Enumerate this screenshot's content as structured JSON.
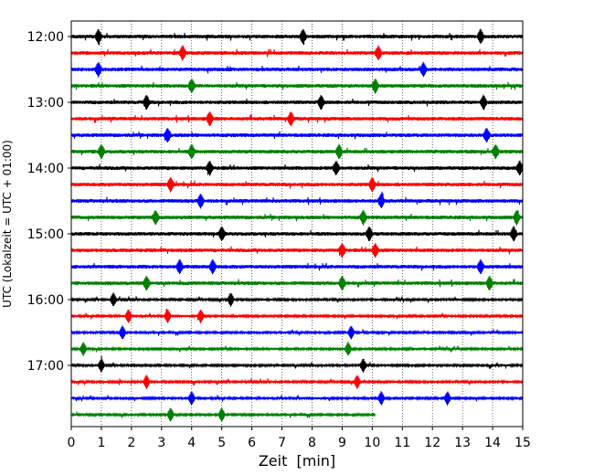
{
  "chart_data": {
    "type": "line",
    "title": "",
    "xlabel": "Zeit  [min]",
    "ylabel": "UTC (Lokalzeit = UTC + 01:00)",
    "xlim": [
      0,
      15
    ],
    "x_ticks": [
      "0",
      "1",
      "2",
      "3",
      "4",
      "5",
      "6",
      "7",
      "8",
      "9",
      "10",
      "11",
      "12",
      "13",
      "14",
      "15"
    ],
    "y_ticks": [
      "12:00",
      "13:00",
      "14:00",
      "15:00",
      "16:00",
      "17:00"
    ],
    "grid": "vertical-dotted",
    "trace_interval_min": 15,
    "series_colors": [
      "#000000",
      "#ff0000",
      "#0000ff",
      "#008000"
    ],
    "traces": [
      {
        "start": "12:00",
        "end_min": 15,
        "events": [
          0.9,
          7.7,
          13.6
        ],
        "color": "#000000"
      },
      {
        "start": "12:15",
        "end_min": 15,
        "events": [
          3.7,
          10.2
        ],
        "color": "#ff0000"
      },
      {
        "start": "12:30",
        "end_min": 15,
        "events": [
          0.9,
          11.7
        ],
        "color": "#0000ff"
      },
      {
        "start": "12:45",
        "end_min": 15,
        "events": [
          4.0,
          10.1
        ],
        "color": "#008000"
      },
      {
        "start": "13:00",
        "end_min": 15,
        "events": [
          2.5,
          8.3,
          13.7
        ],
        "color": "#000000"
      },
      {
        "start": "13:15",
        "end_min": 15,
        "events": [
          4.6,
          7.3
        ],
        "color": "#ff0000"
      },
      {
        "start": "13:30",
        "end_min": 15,
        "events": [
          3.2,
          13.8
        ],
        "color": "#0000ff"
      },
      {
        "start": "13:45",
        "end_min": 15,
        "events": [
          1.0,
          4.0,
          8.9,
          14.1
        ],
        "color": "#008000"
      },
      {
        "start": "14:00",
        "end_min": 15,
        "events": [
          4.6,
          8.8,
          14.9
        ],
        "color": "#000000"
      },
      {
        "start": "14:15",
        "end_min": 15,
        "events": [
          3.3,
          10.0
        ],
        "color": "#ff0000"
      },
      {
        "start": "14:30",
        "end_min": 15,
        "events": [
          4.3,
          10.3
        ],
        "color": "#0000ff"
      },
      {
        "start": "14:45",
        "end_min": 15,
        "events": [
          2.8,
          9.7,
          14.8
        ],
        "color": "#008000"
      },
      {
        "start": "15:00",
        "end_min": 15,
        "events": [
          5.0,
          9.9,
          14.7
        ],
        "color": "#000000"
      },
      {
        "start": "15:15",
        "end_min": 15,
        "events": [
          9.0,
          10.1
        ],
        "color": "#ff0000"
      },
      {
        "start": "15:30",
        "end_min": 15,
        "events": [
          3.6,
          4.7,
          13.6
        ],
        "color": "#0000ff"
      },
      {
        "start": "15:45",
        "end_min": 15,
        "events": [
          2.5,
          9.0,
          13.9
        ],
        "color": "#008000"
      },
      {
        "start": "16:00",
        "end_min": 15,
        "events": [
          1.4,
          5.3
        ],
        "color": "#000000"
      },
      {
        "start": "16:15",
        "end_min": 15,
        "events": [
          1.9,
          3.2,
          4.3
        ],
        "color": "#ff0000"
      },
      {
        "start": "16:30",
        "end_min": 15,
        "events": [
          1.7,
          9.3
        ],
        "color": "#0000ff"
      },
      {
        "start": "16:45",
        "end_min": 15,
        "events": [
          0.4,
          9.2
        ],
        "color": "#008000"
      },
      {
        "start": "17:00",
        "end_min": 15,
        "events": [
          1.0,
          9.7
        ],
        "color": "#000000"
      },
      {
        "start": "17:15",
        "end_min": 15,
        "events": [
          2.5,
          9.5
        ],
        "color": "#ff0000"
      },
      {
        "start": "17:30",
        "end_min": 15,
        "events": [
          4.0,
          10.3,
          12.5
        ],
        "color": "#0000ff"
      },
      {
        "start": "17:45",
        "end_min": 10.1,
        "events": [
          3.3,
          5.0
        ],
        "color": "#008000"
      }
    ]
  }
}
